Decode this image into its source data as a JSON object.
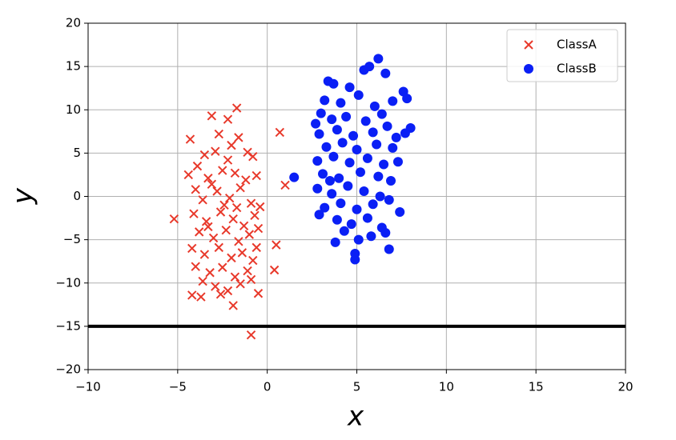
{
  "chart_data": {
    "type": "scatter",
    "xlabel": "x",
    "ylabel": "y",
    "xlim": [
      -10,
      20
    ],
    "ylim": [
      -20,
      20
    ],
    "xticks": [
      {
        "value": -10,
        "label": "−10"
      },
      {
        "value": -5,
        "label": "−5"
      },
      0,
      5,
      10,
      15,
      20
    ],
    "yticks": [
      {
        "value": -20,
        "label": "−20"
      },
      {
        "value": -15,
        "label": "−15"
      },
      {
        "value": -10,
        "label": "−10"
      },
      {
        "value": -5,
        "label": "−5"
      },
      0,
      5,
      10,
      15,
      20
    ],
    "grid": true,
    "legend": "upper right",
    "hline": -15,
    "hline_color": "#000000",
    "series": [
      {
        "name": "ClassA",
        "color": "#e8392b",
        "marker": "x",
        "x": [
          -5.2,
          0.7,
          -0.9,
          1.0,
          0.4,
          0.5,
          -1.7,
          -4.3,
          -4.2,
          -1.9,
          -3.1,
          -2.7,
          -2.2,
          -1.6,
          -3.9,
          -4.4,
          -3.5,
          -2.9,
          -2.0,
          -1.1,
          -0.8,
          -3.3,
          -2.5,
          -1.8,
          -1.2,
          -0.6,
          -4.0,
          -3.6,
          -2.8,
          -2.1,
          -1.5,
          -0.9,
          -0.4,
          -4.1,
          -3.4,
          -2.6,
          -1.9,
          -1.3,
          -0.7,
          -3.8,
          -3.0,
          -2.3,
          -1.6,
          -1.0,
          -0.5,
          -4.2,
          -3.5,
          -2.7,
          -2.0,
          -1.4,
          -0.8,
          -4.0,
          -3.2,
          -2.5,
          -1.8,
          -1.1,
          -3.6,
          -2.9,
          -2.2,
          -1.5,
          -0.5,
          -3.7,
          -2.6,
          -0.9,
          -2.4,
          -3.1,
          -1.7,
          -2.2,
          -3.3,
          -0.6
        ],
        "y": [
          -2.6,
          7.4,
          -16.0,
          1.3,
          -8.5,
          -5.6,
          10.2,
          6.6,
          -11.4,
          -12.6,
          9.3,
          7.2,
          8.9,
          6.8,
          3.5,
          2.5,
          4.8,
          5.2,
          5.9,
          5.1,
          4.6,
          2.1,
          3.0,
          2.7,
          1.9,
          2.4,
          0.8,
          -0.4,
          0.6,
          -0.2,
          1.0,
          -0.8,
          -1.2,
          -2.0,
          -2.9,
          -1.8,
          -2.6,
          -3.4,
          -2.2,
          -4.1,
          -4.8,
          -3.9,
          -5.2,
          -4.4,
          -3.7,
          -6.0,
          -6.7,
          -5.9,
          -7.1,
          -6.5,
          -7.4,
          -8.1,
          -8.8,
          -8.2,
          -9.3,
          -8.6,
          -9.8,
          -10.4,
          -10.9,
          -10.1,
          -11.2,
          -11.6,
          -11.3,
          -9.6,
          -1.0,
          1.4,
          -1.3,
          4.2,
          -3.5,
          -5.9
        ]
      },
      {
        "name": "ClassB",
        "color": "#0a1ff5",
        "marker": "circle",
        "x": [
          1.5,
          6.2,
          4.9,
          6.8,
          3.8,
          5.4,
          5.7,
          6.6,
          3.4,
          3.7,
          4.6,
          7.6,
          7.8,
          7.0,
          3.2,
          4.1,
          5.1,
          6.0,
          2.7,
          3.0,
          8.0,
          7.7,
          7.2,
          3.6,
          4.4,
          5.5,
          6.4,
          2.9,
          3.9,
          4.8,
          5.9,
          6.7,
          3.3,
          4.2,
          5.0,
          6.1,
          7.0,
          2.8,
          3.7,
          4.6,
          5.6,
          6.5,
          7.3,
          3.1,
          4.0,
          5.2,
          6.2,
          6.9,
          2.8,
          3.6,
          4.5,
          5.4,
          6.3,
          3.2,
          4.1,
          5.0,
          5.9,
          6.8,
          2.9,
          3.9,
          4.7,
          5.6,
          6.4,
          4.3,
          5.8,
          6.6,
          5.1,
          4.9,
          7.4,
          3.5
        ],
        "y": [
          2.2,
          15.9,
          -7.3,
          -6.1,
          -5.3,
          14.6,
          15.0,
          14.2,
          13.3,
          13.0,
          12.6,
          12.1,
          11.3,
          11.0,
          11.1,
          10.8,
          11.7,
          10.4,
          8.4,
          9.6,
          7.9,
          7.3,
          6.8,
          8.9,
          9.2,
          8.7,
          9.5,
          7.2,
          7.7,
          7.0,
          7.4,
          8.1,
          5.7,
          6.2,
          5.4,
          6.0,
          5.6,
          4.1,
          4.6,
          3.9,
          4.4,
          3.7,
          4.0,
          2.6,
          2.1,
          2.8,
          2.3,
          1.8,
          0.9,
          0.3,
          1.2,
          0.6,
          0.0,
          -1.3,
          -0.8,
          -1.5,
          -0.9,
          -0.4,
          -2.1,
          -2.7,
          -3.2,
          -2.5,
          -3.6,
          -4.0,
          -4.6,
          -4.2,
          -5.0,
          -6.6,
          -1.8,
          1.8
        ]
      }
    ]
  }
}
